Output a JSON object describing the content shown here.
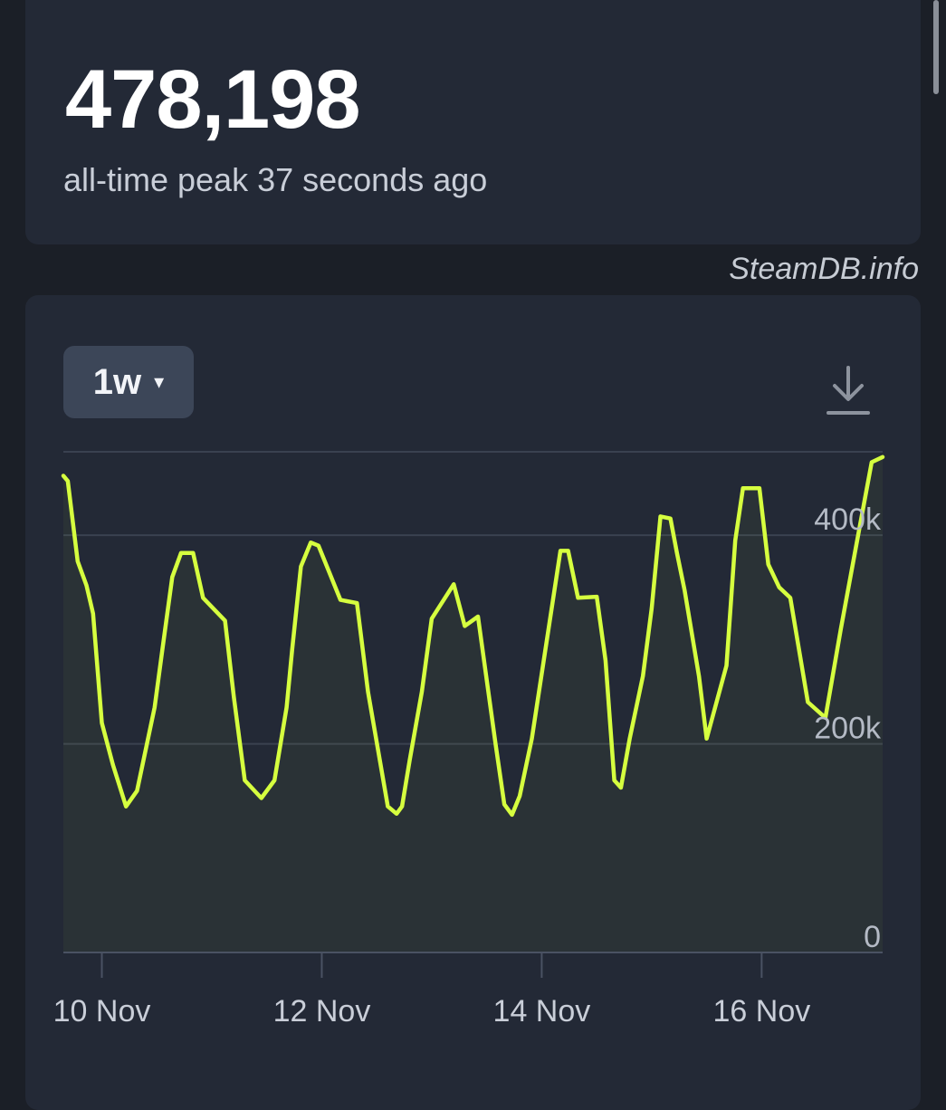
{
  "peak": {
    "value": "478,198",
    "caption": "all-time peak 37 seconds ago"
  },
  "watermark": "SteamDB.info",
  "controls": {
    "range_label": "1w",
    "range_caret": "▾",
    "download_icon": "download-icon"
  },
  "colors": {
    "line": "#d6ff3f",
    "background": "#1b1f27",
    "card": "#232936"
  },
  "chart_data": {
    "type": "line",
    "title": "",
    "xlabel": "",
    "ylabel": "",
    "ylim": [
      0,
      480000
    ],
    "xlim": [
      -0.35,
      7.1
    ],
    "y_ticks": [
      {
        "value": 0,
        "label": "0"
      },
      {
        "value": 200000,
        "label": "200k"
      },
      {
        "value": 400000,
        "label": "400k"
      }
    ],
    "x_ticks": [
      {
        "value": 0,
        "label": "10 Nov"
      },
      {
        "value": 2,
        "label": "12 Nov"
      },
      {
        "value": 4,
        "label": "14 Nov"
      },
      {
        "value": 6,
        "label": "16 Nov"
      }
    ],
    "grid": true,
    "series": [
      {
        "name": "",
        "x": [
          -0.35,
          -0.31,
          -0.22,
          -0.14,
          -0.08,
          0.0,
          0.1,
          0.22,
          0.32,
          0.48,
          0.55,
          0.64,
          0.72,
          0.83,
          0.92,
          1.12,
          1.2,
          1.3,
          1.45,
          1.57,
          1.68,
          1.73,
          1.81,
          1.9,
          1.97,
          2.17,
          2.32,
          2.42,
          2.6,
          2.68,
          2.73,
          2.8,
          2.91,
          3.0,
          3.2,
          3.3,
          3.42,
          3.58,
          3.66,
          3.73,
          3.8,
          3.91,
          4.17,
          4.24,
          4.33,
          4.5,
          4.58,
          4.66,
          4.72,
          4.8,
          4.92,
          5.0,
          5.08,
          5.17,
          5.23,
          5.3,
          5.43,
          5.5,
          5.68,
          5.76,
          5.83,
          5.98,
          6.06,
          6.16,
          6.26,
          6.42,
          6.58,
          6.72,
          6.86,
          7.0,
          7.1
        ],
        "values": [
          457000,
          452000,
          375000,
          352000,
          325000,
          220000,
          180000,
          140000,
          155000,
          235000,
          290000,
          360000,
          383000,
          383000,
          340000,
          318000,
          245000,
          165000,
          148000,
          165000,
          235000,
          290000,
          370000,
          393000,
          390000,
          338000,
          335000,
          250000,
          140000,
          133000,
          140000,
          185000,
          250000,
          320000,
          353000,
          313000,
          322000,
          200000,
          142000,
          132000,
          150000,
          205000,
          385000,
          385000,
          340000,
          341000,
          280000,
          165000,
          158000,
          205000,
          265000,
          330000,
          418000,
          416000,
          383000,
          347000,
          265000,
          205000,
          275000,
          395000,
          445000,
          445000,
          372000,
          350000,
          340000,
          240000,
          225000,
          310000,
          390000,
          470000,
          475000
        ]
      }
    ]
  }
}
